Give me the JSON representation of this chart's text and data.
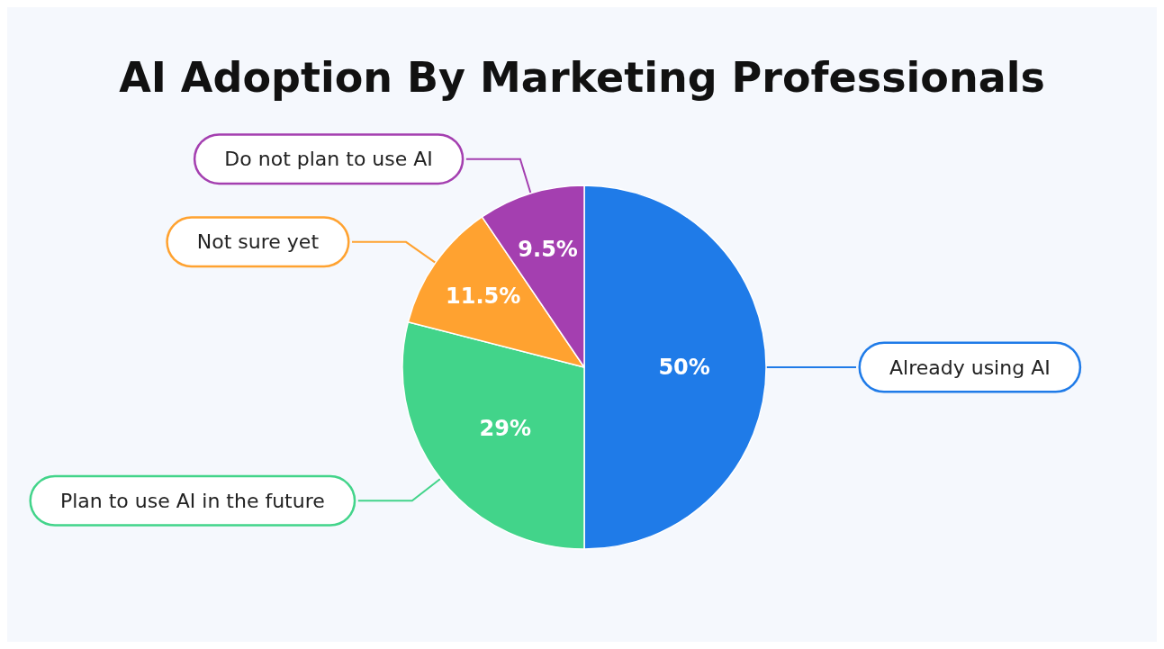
{
  "chart_data": {
    "type": "pie",
    "title": "AI Adoption By Marketing Professionals",
    "categories": [
      "Already using AI",
      "Plan to use AI in the future",
      "Not sure yet",
      "Do not plan to use AI"
    ],
    "values": [
      50,
      29,
      11.5,
      9.5
    ],
    "colors": [
      "#1f7be8",
      "#42d48a",
      "#ffa230",
      "#a43fb0"
    ],
    "value_labels": [
      "50%",
      "29%",
      "11.5%",
      "9.5%"
    ],
    "legend": "left"
  }
}
